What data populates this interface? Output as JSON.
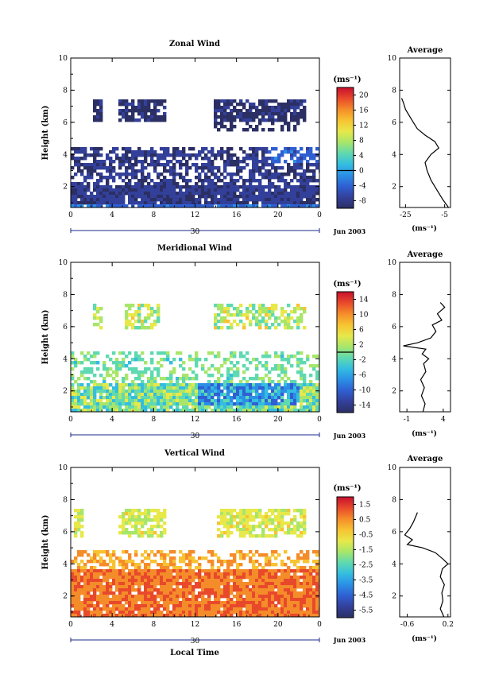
{
  "chart_data": [
    {
      "type": "heatmap",
      "title": "Zonal Wind",
      "ylabel": "Height (km)",
      "units_label": "(ms⁻¹)",
      "date_label": "Jun 2003",
      "day_label": "30",
      "xticks": [
        "0",
        "4",
        "8",
        "12",
        "16",
        "20",
        "0"
      ],
      "yticks": [
        "2",
        "4",
        "6",
        "8",
        "10"
      ],
      "xlim": [
        0,
        24
      ],
      "ylim": [
        0.7,
        10
      ],
      "colorbar": {
        "ticks": [
          "-8",
          "-4",
          "0",
          "4",
          "8",
          "12",
          "16",
          "20"
        ],
        "range": [
          -10,
          22
        ],
        "zero_line": 0
      },
      "average": {
        "title": "Average",
        "xlabel": "(ms⁻¹)",
        "xticks": [
          "-25",
          "-5"
        ],
        "xlim": [
          -28,
          -2
        ],
        "profile": [
          {
            "h": 0.7,
            "v": -3
          },
          {
            "h": 1.2,
            "v": -6
          },
          {
            "h": 1.8,
            "v": -9
          },
          {
            "h": 2.4,
            "v": -12
          },
          {
            "h": 3.0,
            "v": -14
          },
          {
            "h": 3.5,
            "v": -15
          },
          {
            "h": 4.0,
            "v": -12
          },
          {
            "h": 4.4,
            "v": -8
          },
          {
            "h": 4.8,
            "v": -10
          },
          {
            "h": 5.2,
            "v": -15
          },
          {
            "h": 5.6,
            "v": -19
          },
          {
            "h": 6.0,
            "v": -21
          },
          {
            "h": 6.4,
            "v": -23
          },
          {
            "h": 6.8,
            "v": -25
          },
          {
            "h": 7.2,
            "v": -26
          },
          {
            "h": 7.5,
            "v": -27
          }
        ]
      }
    },
    {
      "type": "heatmap",
      "title": "Meridional Wind",
      "ylabel": "Height (km)",
      "units_label": "(ms⁻¹)",
      "date_label": "Jun 2003",
      "day_label": "30",
      "xticks": [
        "0",
        "4",
        "8",
        "12",
        "16",
        "20",
        "0"
      ],
      "yticks": [
        "2",
        "4",
        "6",
        "8",
        "10"
      ],
      "xlim": [
        0,
        24
      ],
      "ylim": [
        0.7,
        10
      ],
      "colorbar": {
        "ticks": [
          "-14",
          "-10",
          "-6",
          "-2",
          "2",
          "6",
          "10",
          "14"
        ],
        "range": [
          -16,
          16
        ],
        "zero_line": 0
      },
      "average": {
        "title": "Average",
        "xlabel": "(ms⁻¹)",
        "xticks": [
          "-1",
          "4"
        ],
        "xlim": [
          -2,
          5
        ],
        "profile": [
          {
            "h": 0.7,
            "v": 1.2
          },
          {
            "h": 1.2,
            "v": 1.5
          },
          {
            "h": 1.7,
            "v": 1.0
          },
          {
            "h": 2.2,
            "v": 1.4
          },
          {
            "h": 2.7,
            "v": 0.9
          },
          {
            "h": 3.2,
            "v": 1.6
          },
          {
            "h": 3.7,
            "v": 1.3
          },
          {
            "h": 4.0,
            "v": 2.0
          },
          {
            "h": 4.3,
            "v": 1.1
          },
          {
            "h": 4.6,
            "v": 1.6
          },
          {
            "h": 4.8,
            "v": -1.5
          },
          {
            "h": 5.0,
            "v": 0.5
          },
          {
            "h": 5.3,
            "v": 2.3
          },
          {
            "h": 5.7,
            "v": 3.0
          },
          {
            "h": 6.1,
            "v": 2.5
          },
          {
            "h": 6.4,
            "v": 3.8
          },
          {
            "h": 6.8,
            "v": 3.2
          },
          {
            "h": 7.2,
            "v": 4.2
          },
          {
            "h": 7.5,
            "v": 3.6
          }
        ]
      }
    },
    {
      "type": "heatmap",
      "title": "Vertical Wind",
      "ylabel": "Height (km)",
      "xlabel": "Local Time",
      "units_label": "(ms⁻¹)",
      "date_label": "Jun 2003",
      "day_label": "30",
      "xticks": [
        "0",
        "4",
        "8",
        "12",
        "16",
        "20",
        "0"
      ],
      "yticks": [
        "2",
        "4",
        "6",
        "8",
        "10"
      ],
      "xlim": [
        0,
        24
      ],
      "ylim": [
        0.7,
        10
      ],
      "colorbar": {
        "ticks": [
          "-5.5",
          "-4.5",
          "-3.5",
          "-2.5",
          "-1.5",
          "-0.5",
          "0.5",
          "1.5"
        ],
        "range": [
          -6,
          2
        ],
        "zero_line": null
      },
      "average": {
        "title": "Average",
        "xlabel": "(ms⁻¹)",
        "xticks": [
          "-0.6",
          "0.2"
        ],
        "xlim": [
          -0.75,
          0.25
        ],
        "profile": [
          {
            "h": 0.7,
            "v": 0.12
          },
          {
            "h": 1.2,
            "v": 0.05
          },
          {
            "h": 1.7,
            "v": 0.1
          },
          {
            "h": 2.2,
            "v": 0.08
          },
          {
            "h": 2.7,
            "v": 0.13
          },
          {
            "h": 3.2,
            "v": 0.05
          },
          {
            "h": 3.7,
            "v": 0.09
          },
          {
            "h": 4.0,
            "v": 0.2
          },
          {
            "h": 4.3,
            "v": 0.1
          },
          {
            "h": 4.7,
            "v": -0.05
          },
          {
            "h": 5.0,
            "v": -0.3
          },
          {
            "h": 5.2,
            "v": -0.6
          },
          {
            "h": 5.5,
            "v": -0.5
          },
          {
            "h": 5.8,
            "v": -0.65
          },
          {
            "h": 6.2,
            "v": -0.55
          },
          {
            "h": 6.6,
            "v": -0.48
          },
          {
            "h": 7.2,
            "v": -0.4
          }
        ]
      }
    }
  ],
  "colors": {
    "scale": [
      "#2b2f63",
      "#33409a",
      "#2f5fd2",
      "#2b8fe6",
      "#33bde0",
      "#5fd9b0",
      "#a8e66a",
      "#e8e84a",
      "#f7c332",
      "#f58c2a",
      "#e8492b",
      "#c8102e"
    ],
    "axis": "#000000",
    "day_marker": "#1a2a8a"
  }
}
